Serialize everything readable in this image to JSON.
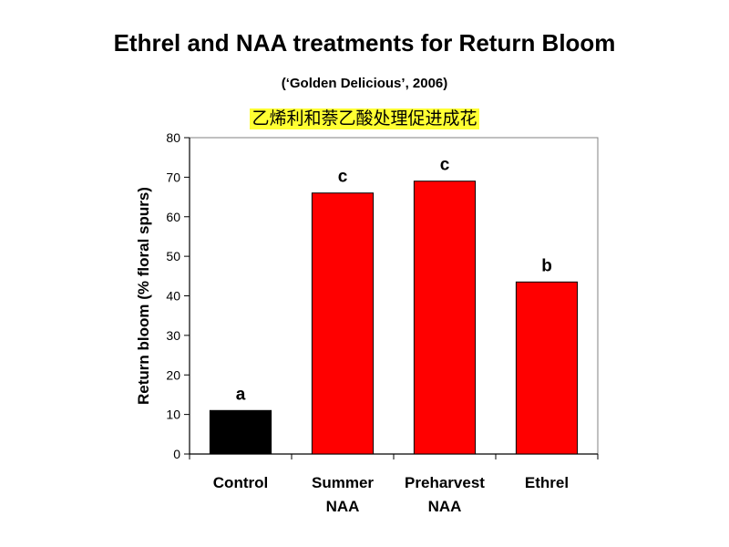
{
  "header": {
    "title": "Ethrel and NAA treatments for Return Bloom",
    "subtitle": "(‘Golden Delicious’, 2006)",
    "caption_zh": "乙烯利和萘乙酸处理促进成花"
  },
  "chart_data": {
    "type": "bar",
    "categories": [
      [
        "Control"
      ],
      [
        "Summer",
        "NAA"
      ],
      [
        "Preharvest",
        "NAA"
      ],
      [
        "Ethrel"
      ]
    ],
    "values": [
      11,
      66,
      69,
      43.5
    ],
    "bar_colors": [
      "#000000",
      "#ff0000",
      "#ff0000",
      "#ff0000"
    ],
    "data_labels": [
      "a",
      "c",
      "c",
      "b"
    ],
    "ylabel": "Return bloom (% floral spurs)",
    "xlabel": "",
    "ylim": [
      0,
      80
    ],
    "yticks": [
      0,
      10,
      20,
      30,
      40,
      50,
      60,
      70,
      80
    ],
    "grid": false,
    "legend": "none"
  }
}
